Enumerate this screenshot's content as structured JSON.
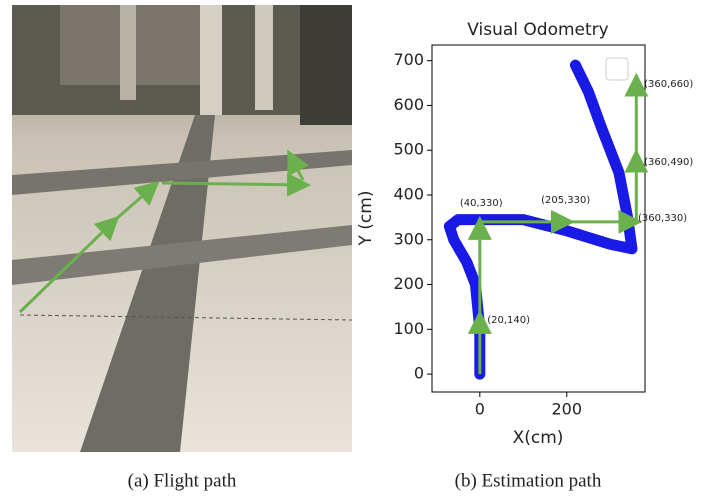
{
  "chart_data": {
    "type": "line",
    "title": "Visual Odometry",
    "x_label": "X(cm)",
    "y_label": "Y (cm)",
    "xlim": [
      -110,
      380
    ],
    "ylim": [
      -40,
      735
    ],
    "xticks": [
      0,
      200
    ],
    "yticks": [
      0,
      100,
      200,
      300,
      400,
      500,
      600,
      700
    ],
    "legend": "upper right",
    "series": [
      {
        "color": "#1a1ae6",
        "x": [
          0,
          0,
          -10,
          -30,
          -60,
          -70,
          -50,
          50,
          100,
          200,
          300,
          350,
          340,
          320,
          280,
          250,
          220
        ],
        "y": [
          0,
          100,
          200,
          250,
          300,
          330,
          345,
          345,
          345,
          320,
          290,
          280,
          350,
          450,
          550,
          630,
          690
        ]
      }
    ],
    "arrow_color": "#6ab04c",
    "arrows": [
      [
        0,
        0,
        0,
        130
      ],
      [
        0,
        130,
        0,
        340
      ],
      [
        0,
        340,
        205,
        340
      ],
      [
        205,
        340,
        360,
        340
      ],
      [
        360,
        340,
        360,
        490
      ],
      [
        360,
        490,
        360,
        660
      ]
    ],
    "annotations": [
      {
        "text": "(20,140)",
        "x": 17,
        "y": 121
      },
      {
        "text": "(40,330)",
        "x": -46,
        "y": 382
      },
      {
        "text": "(205,330)",
        "x": 141,
        "y": 389
      },
      {
        "text": "(360,330)",
        "x": 364,
        "y": 349
      },
      {
        "text": "(360,490)",
        "x": 378,
        "y": 474
      },
      {
        "text": "(360,660)",
        "x": 378,
        "y": 648
      }
    ]
  },
  "captions": [
    "(a)  Flight path",
    "(b)  Estimation path"
  ]
}
